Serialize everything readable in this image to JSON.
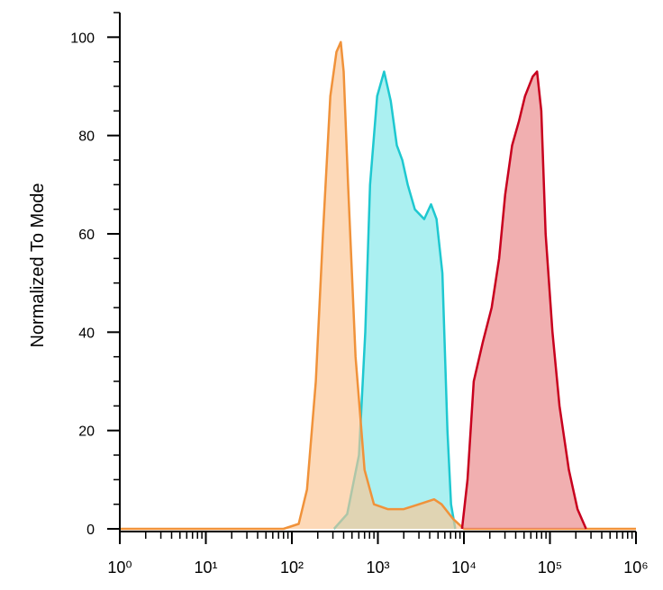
{
  "chart_data": {
    "type": "histogram-overlay",
    "y_label": "Normalized To Mode",
    "xlim": [
      1,
      1000000
    ],
    "xlog": true,
    "ylim": [
      0,
      105
    ],
    "yticks": [
      0,
      20,
      40,
      60,
      80,
      100
    ],
    "yminorticks": [
      5,
      10,
      15,
      25,
      30,
      35,
      45,
      50,
      55,
      65,
      70,
      75,
      85,
      90,
      95,
      105
    ],
    "xticks": [
      {
        "value": 1,
        "label": "10⁰"
      },
      {
        "value": 10,
        "label": "10¹"
      },
      {
        "value": 100,
        "label": "10²"
      },
      {
        "value": 1000,
        "label": "10³"
      },
      {
        "value": 10000,
        "label": "10⁴"
      },
      {
        "value": 100000,
        "label": "10⁵"
      },
      {
        "value": 1000000,
        "label": "10⁶"
      }
    ],
    "xminorticks": [
      2,
      3,
      4,
      5,
      6,
      7,
      8,
      9,
      20,
      30,
      40,
      50,
      60,
      70,
      80,
      90,
      200,
      300,
      400,
      500,
      600,
      700,
      800,
      900,
      2000,
      3000,
      4000,
      5000,
      6000,
      7000,
      8000,
      9000,
      20000,
      30000,
      40000,
      50000,
      60000,
      70000,
      80000,
      90000,
      200000,
      300000,
      400000,
      500000,
      600000,
      700000,
      800000,
      900000
    ],
    "series": [
      {
        "color": "#1ec8d0",
        "fill": "#7ee8ea",
        "x": [
          309,
          440,
          603,
          713,
          810,
          980,
          1180,
          1410,
          1660,
          1920,
          2220,
          2690,
          3450,
          4150,
          4800,
          5620,
          6440,
          7080,
          7940
        ],
        "values": [
          0,
          3,
          15,
          40,
          70,
          88,
          93,
          87,
          78,
          75,
          70,
          65,
          63,
          66,
          63,
          52,
          20,
          5,
          0
        ]
      },
      {
        "color": "#f0923a",
        "fill": "#fcc592",
        "x": [
          1,
          80,
          120,
          150,
          190,
          230,
          280,
          330,
          370,
          400,
          450,
          550,
          700,
          900,
          1300,
          2000,
          3000,
          4500,
          5500,
          7500,
          10000,
          1000000
        ],
        "values": [
          0,
          0,
          1,
          8,
          30,
          60,
          88,
          97,
          99,
          93,
          70,
          35,
          12,
          5,
          4,
          4,
          5,
          6,
          5,
          2,
          0,
          0
        ]
      },
      {
        "color": "#c8001e",
        "fill": "#e98486",
        "x": [
          9500,
          11000,
          13000,
          16600,
          21000,
          25700,
          30200,
          36300,
          43700,
          51300,
          63100,
          70800,
          79400,
          89100,
          107000,
          129000,
          166000,
          209000,
          263000
        ],
        "values": [
          0,
          10,
          30,
          38,
          45,
          55,
          68,
          78,
          83,
          88,
          92,
          93,
          85,
          60,
          40,
          25,
          12,
          4,
          0
        ]
      }
    ]
  }
}
